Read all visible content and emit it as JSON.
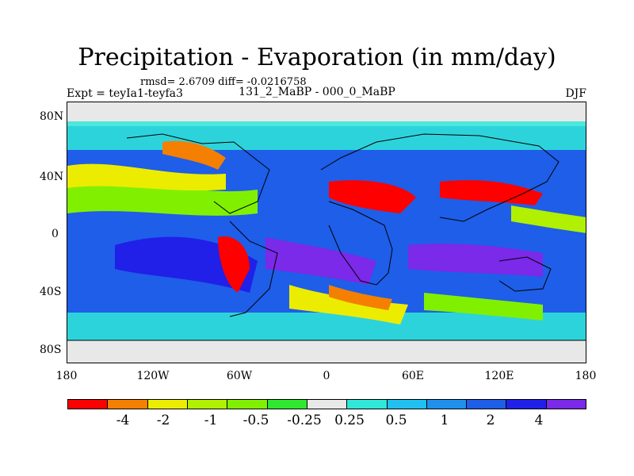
{
  "title": "Precipitation - Evaporation (in mm/day)",
  "stats": "rmsd= 2.6709 diff= -0.0216758",
  "experiment": "Expt = teyIa1-teyfa3",
  "period": "131_2_MaBP - 000_0_MaBP",
  "season": "DJF",
  "lat_labels": [
    "80N",
    "40N",
    "0",
    "40S",
    "80S"
  ],
  "lon_labels": [
    "180",
    "120W",
    "60W",
    "0",
    "60E",
    "120E",
    "180"
  ],
  "colorbar": {
    "colors": [
      "#ff0000",
      "#f47f00",
      "#ecec00",
      "#b0f000",
      "#80f000",
      "#30e830",
      "#e8e8e8",
      "#30e8d8",
      "#20c0f0",
      "#2090ee",
      "#1e5ee8",
      "#2020e8",
      "#7a2ae8"
    ],
    "labels": [
      "-4",
      "-2",
      "-1",
      "-0.5",
      "-0.25",
      "0.25",
      "0.5",
      "1",
      "2",
      "4"
    ]
  }
}
